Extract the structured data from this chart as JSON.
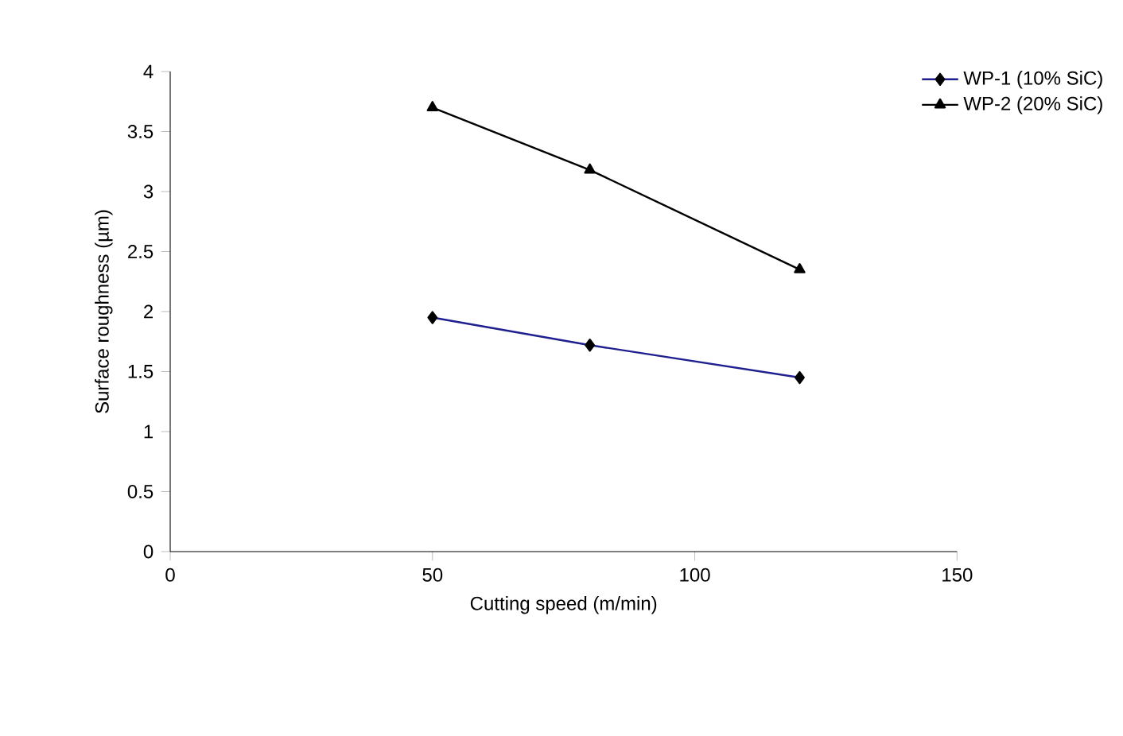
{
  "chart_data": {
    "type": "line",
    "xlabel": "Cutting speed (m/min)",
    "ylabel": "Surface roughness (µm)",
    "xlim": [
      0,
      150
    ],
    "xticks": [
      0,
      50,
      100,
      150
    ],
    "ylim": [
      0,
      4
    ],
    "yticks": [
      0,
      0.5,
      1,
      1.5,
      2,
      2.5,
      3,
      3.5,
      4
    ],
    "grid": false,
    "legend": "top right",
    "series": [
      {
        "name": "WP-1 (10% SiC)",
        "color": "#1f1f8f",
        "marker": "diamond",
        "x": [
          50,
          80,
          120
        ],
        "values": [
          1.95,
          1.72,
          1.45
        ]
      },
      {
        "name": "WP-2 (20% SiC)",
        "color": "#000000",
        "marker": "triangle",
        "x": [
          50,
          80,
          120
        ],
        "values": [
          3.7,
          3.18,
          2.35
        ]
      }
    ]
  }
}
